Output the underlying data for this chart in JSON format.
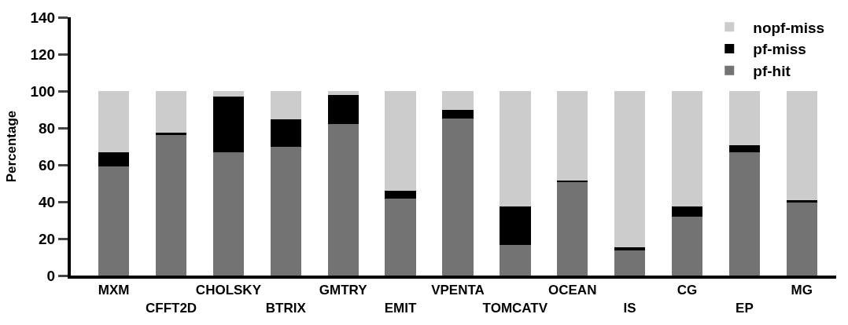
{
  "chart_data": {
    "type": "bar",
    "stacked": true,
    "ylabel": "Percentage",
    "categories": [
      "MXM",
      "CFFT2D",
      "CHOLSKY",
      "BTRIX",
      "GMTRY",
      "EMIT",
      "VPENTA",
      "TOMCATV",
      "OCEAN",
      "IS",
      "CG",
      "EP",
      "MG"
    ],
    "series": [
      {
        "name": "pf-hit",
        "color": "#737373",
        "values": [
          59,
          76.3,
          67,
          70,
          82,
          41.5,
          85,
          16.5,
          51,
          13.5,
          32,
          67,
          39.5
        ]
      },
      {
        "name": "pf-miss",
        "color": "#000000",
        "values": [
          8,
          1,
          30,
          14.5,
          16,
          4.5,
          5,
          21,
          0.7,
          2,
          5.5,
          3.5,
          1.5
        ]
      },
      {
        "name": "nopf-miss",
        "color": "#cccccc",
        "values": [
          33,
          22.7,
          3,
          15.5,
          2,
          54,
          10,
          62.5,
          48.3,
          84.5,
          62.5,
          29.5,
          59
        ]
      }
    ],
    "ylim": [
      0,
      140
    ],
    "yticks": [
      0,
      20,
      40,
      60,
      80,
      100,
      120,
      140
    ],
    "legend": "top right"
  }
}
